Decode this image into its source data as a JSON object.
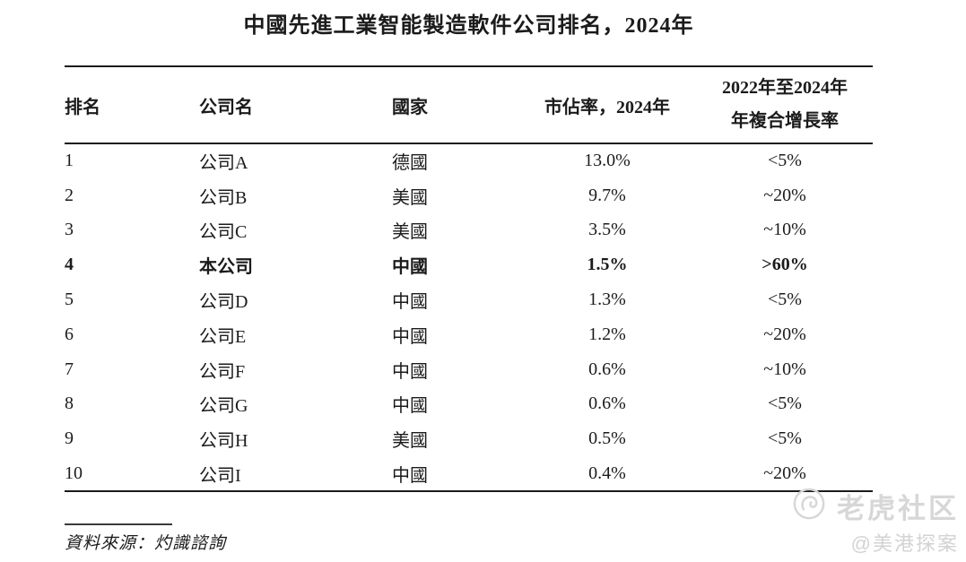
{
  "page": {
    "title": "中國先進工業智能製造軟件公司排名，2024年"
  },
  "table": {
    "headers": {
      "rank": "排名",
      "company": "公司名",
      "country": "國家",
      "share": "市佔率，2024年",
      "cagr_line1": "2022年至2024年",
      "cagr_line2": "年複合增長率"
    },
    "rows": [
      {
        "rank": "1",
        "company": "公司A",
        "country": "德國",
        "share": "13.0%",
        "cagr": "<5%",
        "bold": false
      },
      {
        "rank": "2",
        "company": "公司B",
        "country": "美國",
        "share": "9.7%",
        "cagr": "~20%",
        "bold": false
      },
      {
        "rank": "3",
        "company": "公司C",
        "country": "美國",
        "share": "3.5%",
        "cagr": "~10%",
        "bold": false
      },
      {
        "rank": "4",
        "company": "本公司",
        "country": "中國",
        "share": "1.5%",
        "cagr": ">60%",
        "bold": true
      },
      {
        "rank": "5",
        "company": "公司D",
        "country": "中國",
        "share": "1.3%",
        "cagr": "<5%",
        "bold": false
      },
      {
        "rank": "6",
        "company": "公司E",
        "country": "中國",
        "share": "1.2%",
        "cagr": "~20%",
        "bold": false
      },
      {
        "rank": "7",
        "company": "公司F",
        "country": "中國",
        "share": "0.6%",
        "cagr": "~10%",
        "bold": false
      },
      {
        "rank": "8",
        "company": "公司G",
        "country": "中國",
        "share": "0.6%",
        "cagr": "<5%",
        "bold": false
      },
      {
        "rank": "9",
        "company": "公司H",
        "country": "美國",
        "share": "0.5%",
        "cagr": "<5%",
        "bold": false
      },
      {
        "rank": "10",
        "company": "公司I",
        "country": "中國",
        "share": "0.4%",
        "cagr": "~20%",
        "bold": false
      }
    ]
  },
  "footer": {
    "source": "資料來源：灼識諮詢"
  },
  "watermark": {
    "brand": "老虎社区",
    "handle": "@美港探案",
    "logo_icon": "tiger-logo-icon"
  },
  "colors": {
    "text": "#1b1b1b",
    "rule": "#1b1b1b",
    "watermark": "#d7d7d7"
  }
}
